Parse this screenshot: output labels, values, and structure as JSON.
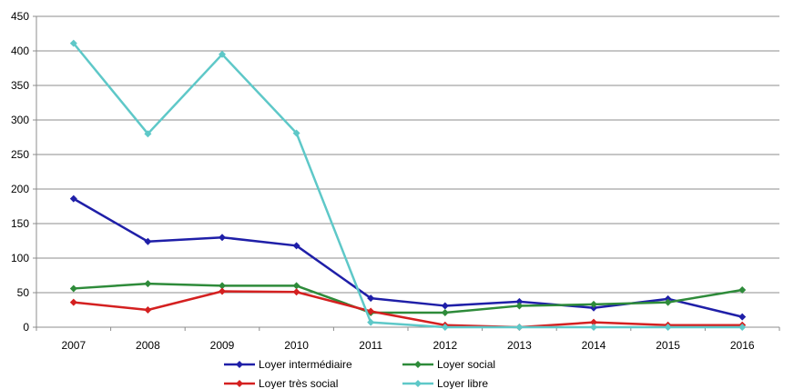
{
  "chart_data": {
    "type": "line",
    "x": [
      "2007",
      "2008",
      "2009",
      "2010",
      "2011",
      "2012",
      "2013",
      "2014",
      "2015",
      "2016"
    ],
    "ylim": [
      0,
      450
    ],
    "yticks": [
      0,
      50,
      100,
      150,
      200,
      250,
      300,
      350,
      400,
      450
    ],
    "grid": true,
    "legend_position": "bottom",
    "series": [
      {
        "name": "Loyer intermédiaire",
        "color": "#1f1fa8",
        "values": [
          186,
          124,
          130,
          118,
          42,
          31,
          37,
          28,
          41,
          15
        ]
      },
      {
        "name": "Loyer social",
        "color": "#2e8b3a",
        "values": [
          56,
          63,
          60,
          60,
          21,
          21,
          31,
          33,
          36,
          54
        ]
      },
      {
        "name": "Loyer très social",
        "color": "#d42020",
        "values": [
          36,
          25,
          52,
          51,
          23,
          3,
          0,
          7,
          3,
          3
        ]
      },
      {
        "name": "Loyer libre",
        "color": "#5ec8c8",
        "values": [
          411,
          280,
          395,
          281,
          7,
          0,
          0,
          0,
          0,
          0
        ]
      }
    ]
  }
}
